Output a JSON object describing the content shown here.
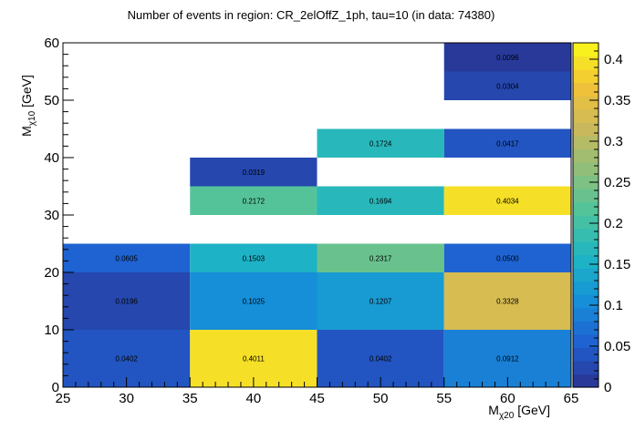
{
  "chart_data": {
    "type": "heatmap",
    "title": "Number of events in region: CR_2elOffZ_1ph, tau=10 (in data: 74380)",
    "xlabel": {
      "main": "M",
      "sub": "χ20",
      "unit": " [GeV]"
    },
    "ylabel": {
      "main": "M",
      "sub": "χ10",
      "unit": " [GeV]"
    },
    "xlim": [
      25,
      65
    ],
    "ylim": [
      0,
      60
    ],
    "x_ticks": [
      25,
      30,
      35,
      40,
      45,
      50,
      55,
      60,
      65
    ],
    "y_ticks": [
      0,
      10,
      20,
      30,
      40,
      50,
      60
    ],
    "zlim": [
      0,
      0.42
    ],
    "z_ticks": [
      0,
      0.05,
      0.1,
      0.15,
      0.2,
      0.25,
      0.3,
      0.35,
      0.4
    ],
    "z_tick_labels": [
      "0",
      "0.05",
      "0.1",
      "0.15",
      "0.2",
      "0.25",
      "0.3",
      "0.35",
      "0.4"
    ],
    "cells": [
      {
        "x0": 25,
        "x1": 35,
        "y0": 0,
        "y1": 10,
        "value": 0.0402,
        "label": "0.0402"
      },
      {
        "x0": 35,
        "x1": 45,
        "y0": 0,
        "y1": 10,
        "value": 0.4011,
        "label": "0.4011"
      },
      {
        "x0": 45,
        "x1": 55,
        "y0": 0,
        "y1": 10,
        "value": 0.0402,
        "label": "0.0402"
      },
      {
        "x0": 55,
        "x1": 65,
        "y0": 0,
        "y1": 10,
        "value": 0.0912,
        "label": "0.0912"
      },
      {
        "x0": 25,
        "x1": 35,
        "y0": 10,
        "y1": 20,
        "value": 0.0196,
        "label": "0.0196"
      },
      {
        "x0": 35,
        "x1": 45,
        "y0": 10,
        "y1": 20,
        "value": 0.1025,
        "label": "0.1025"
      },
      {
        "x0": 45,
        "x1": 55,
        "y0": 10,
        "y1": 20,
        "value": 0.1207,
        "label": "0.1207"
      },
      {
        "x0": 55,
        "x1": 65,
        "y0": 10,
        "y1": 20,
        "value": 0.3328,
        "label": "0.3328"
      },
      {
        "x0": 25,
        "x1": 35,
        "y0": 20,
        "y1": 25,
        "value": 0.0605,
        "label": "0.0605"
      },
      {
        "x0": 35,
        "x1": 45,
        "y0": 20,
        "y1": 25,
        "value": 0.1503,
        "label": "0.1503"
      },
      {
        "x0": 45,
        "x1": 55,
        "y0": 20,
        "y1": 25,
        "value": 0.2317,
        "label": "0.2317"
      },
      {
        "x0": 55,
        "x1": 65,
        "y0": 20,
        "y1": 25,
        "value": 0.05,
        "label": "0.0500"
      },
      {
        "x0": 35,
        "x1": 45,
        "y0": 30,
        "y1": 35,
        "value": 0.2172,
        "label": "0.2172"
      },
      {
        "x0": 45,
        "x1": 55,
        "y0": 30,
        "y1": 35,
        "value": 0.1694,
        "label": "0.1694"
      },
      {
        "x0": 55,
        "x1": 65,
        "y0": 30,
        "y1": 35,
        "value": 0.4034,
        "label": "0.4034"
      },
      {
        "x0": 35,
        "x1": 45,
        "y0": 35,
        "y1": 40,
        "value": 0.0319,
        "label": "0.0319"
      },
      {
        "x0": 45,
        "x1": 55,
        "y0": 40,
        "y1": 45,
        "value": 0.1724,
        "label": "0.1724"
      },
      {
        "x0": 55,
        "x1": 65,
        "y0": 40,
        "y1": 45,
        "value": 0.0417,
        "label": "0.0417"
      },
      {
        "x0": 55,
        "x1": 65,
        "y0": 50,
        "y1": 55,
        "value": 0.0304,
        "label": "0.0304"
      },
      {
        "x0": 55,
        "x1": 65,
        "y0": 55,
        "y1": 60,
        "value": 0.0096,
        "label": "0.0096"
      }
    ]
  },
  "colorscale": [
    "#2a3290",
    "#1f5fd0",
    "#168ed8",
    "#1eb5c4",
    "#4bc39e",
    "#8cc07c",
    "#c9b95c",
    "#f2c237",
    "#f9f91a"
  ]
}
